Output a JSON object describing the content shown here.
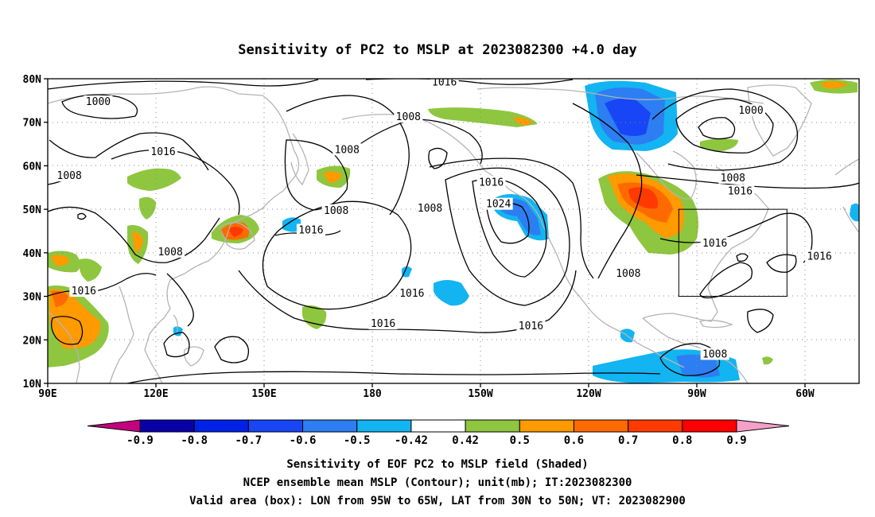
{
  "title": "Sensitivity of PC2 to MSLP at 2023082300 +4.0 day",
  "map": {
    "lat_ticks": [
      "80N",
      "70N",
      "60N",
      "50N",
      "40N",
      "30N",
      "20N",
      "10N"
    ],
    "lon_ticks": [
      "90E",
      "120E",
      "150E",
      "180",
      "150W",
      "120W",
      "90W",
      "60W"
    ],
    "lon_range_deg_east": [
      90,
      315
    ],
    "lat_range": [
      10,
      80
    ],
    "grid": "dotted",
    "valid_box": {
      "lon_w": -95,
      "lon_e": -65,
      "lat_s": 30,
      "lat_n": 50
    }
  },
  "contour_labels": [
    {
      "text": "1016",
      "lon": 200,
      "lat": 79
    },
    {
      "text": "1000",
      "lon": 104,
      "lat": 74.5
    },
    {
      "text": "1008",
      "lon": 190,
      "lat": 71
    },
    {
      "text": "1000",
      "lon": 285,
      "lat": 72.5
    },
    {
      "text": "1016",
      "lon": 122,
      "lat": 63
    },
    {
      "text": "1008",
      "lon": 173,
      "lat": 63.5
    },
    {
      "text": "1008",
      "lon": 96,
      "lat": 57.5
    },
    {
      "text": "1016",
      "lon": 213,
      "lat": 56
    },
    {
      "text": "1008",
      "lon": 280,
      "lat": 57
    },
    {
      "text": "1024",
      "lon": 215,
      "lat": 51
    },
    {
      "text": "1016",
      "lon": 282,
      "lat": 54
    },
    {
      "text": "1008",
      "lon": 170,
      "lat": 49.5
    },
    {
      "text": "1008",
      "lon": 196,
      "lat": 50
    },
    {
      "text": "1016",
      "lon": 163,
      "lat": 45
    },
    {
      "text": "1008",
      "lon": 124,
      "lat": 40
    },
    {
      "text": "1016",
      "lon": 275,
      "lat": 42
    },
    {
      "text": "1016",
      "lon": 304,
      "lat": 39
    },
    {
      "text": "1008",
      "lon": 251,
      "lat": 35
    },
    {
      "text": "1016",
      "lon": 100,
      "lat": 31
    },
    {
      "text": "1016",
      "lon": 191,
      "lat": 30.5
    },
    {
      "text": "1016",
      "lon": 183,
      "lat": 23.5
    },
    {
      "text": "1016",
      "lon": 224,
      "lat": 23
    },
    {
      "text": "1008",
      "lon": 275,
      "lat": 16.5
    }
  ],
  "colorbar": {
    "labels": [
      "-0.9",
      "-0.8",
      "-0.7",
      "-0.6",
      "-0.5",
      "-0.42",
      "0.42",
      "0.5",
      "0.6",
      "0.7",
      "0.8",
      "0.9"
    ],
    "colors": [
      "#0a00a8",
      "#0022e8",
      "#1845f5",
      "#2c7ef2",
      "#12b4f2",
      "#ffffff",
      "#8ec63f",
      "#ff9a00",
      "#ff6a00",
      "#ff3a00",
      "#ff0000"
    ],
    "low_end_color": "#c4007f",
    "high_end_color": "#f5a0c8"
  },
  "footer": {
    "line1": "Sensitivity of EOF PC2 to MSLP field (Shaded)",
    "line2": "NCEP ensemble mean MSLP (Contour); unit(mb); IT:2023082300",
    "line3": "Valid area (box): LON from 95W to 65W, LAT from 30N to 50N; VT: 2023082900"
  }
}
